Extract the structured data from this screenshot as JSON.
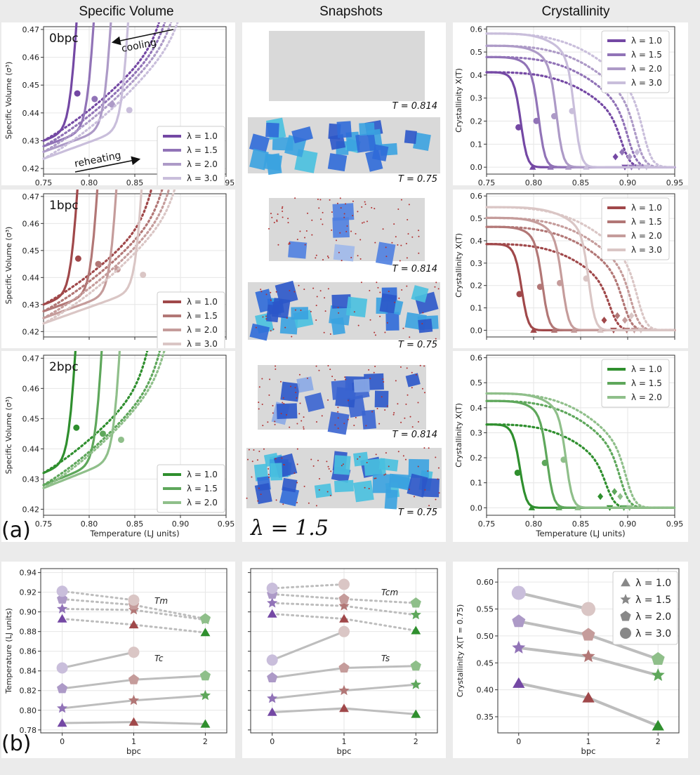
{
  "headers": {
    "specific_volume": "Specific Volume",
    "snapshots": "Snapshots",
    "crystallinity": "Crystallinity"
  },
  "panel_labels": {
    "a": "(a)",
    "b": "(b)"
  },
  "snapshot_lambda": "λ = 1.5",
  "snapshot_temps": [
    "T = 0.814",
    "T = 0.75"
  ],
  "colors": {
    "p0": [
      "#7448a4",
      "#9173b7",
      "#ad9ac7",
      "#c9bedb"
    ],
    "p1": [
      "#a0484a",
      "#b27776",
      "#c59c9b",
      "#dac6c5"
    ],
    "p2": [
      "#2f8f2e",
      "#5ea75b",
      "#8fbf8a"
    ],
    "grey": "#bdbdbd"
  },
  "chart_data": [
    {
      "type": "line",
      "id": "sv0",
      "annotation": "0bpc",
      "xlabel": "Temperature (LJ units)",
      "ylabel": "Specific Volume (σ³)",
      "xlim": [
        0.75,
        0.95
      ],
      "ylim": [
        0.418,
        0.471
      ],
      "xticks": [
        "0.75",
        "0.80",
        "0.85",
        "0.90",
        "0.95"
      ],
      "yticks": [
        "0.42",
        "0.43",
        "0.44",
        "0.45",
        "0.46",
        "0.47"
      ],
      "arrow_labels": [
        "cooling",
        "reheating"
      ],
      "series": [
        {
          "name": "λ = 1.0",
          "tc": 0.787,
          "tm": 0.895,
          "low": 0.43,
          "mid": 0.447
        },
        {
          "name": "λ = 1.5",
          "tc": 0.806,
          "tm": 0.902,
          "low": 0.428,
          "mid": 0.445
        },
        {
          "name": "λ = 2.0",
          "tc": 0.825,
          "tm": 0.91,
          "low": 0.426,
          "mid": 0.443
        },
        {
          "name": "λ = 3.0",
          "tc": 0.844,
          "tm": 0.918,
          "low": 0.4235,
          "mid": 0.441
        }
      ]
    },
    {
      "type": "line",
      "id": "sv1",
      "annotation": "1bpc",
      "xlabel": "",
      "ylabel": "Specific Volume (σ³)",
      "xlim": [
        0.75,
        0.95
      ],
      "ylim": [
        0.418,
        0.471
      ],
      "xticks": [
        "",
        "",
        "",
        "",
        ""
      ],
      "yticks": [
        "0.42",
        "0.43",
        "0.44",
        "0.45",
        "0.46",
        "0.47"
      ],
      "series": [
        {
          "name": "λ = 1.0",
          "tc": 0.788,
          "tm": 0.883,
          "low": 0.43,
          "mid": 0.447
        },
        {
          "name": "λ = 1.5",
          "tc": 0.81,
          "tm": 0.897,
          "low": 0.4275,
          "mid": 0.445
        },
        {
          "name": "λ = 2.0",
          "tc": 0.831,
          "tm": 0.905,
          "low": 0.425,
          "mid": 0.443
        },
        {
          "name": "λ = 3.0",
          "tc": 0.859,
          "tm": 0.912,
          "low": 0.423,
          "mid": 0.441
        }
      ]
    },
    {
      "type": "line",
      "id": "sv2",
      "annotation": "2bpc",
      "xlabel": "Temperature (LJ units)",
      "ylabel": "Specific Volume (σ³)",
      "xlim": [
        0.75,
        0.95
      ],
      "ylim": [
        0.418,
        0.471
      ],
      "xticks": [
        "0.75",
        "0.80",
        "0.85",
        "0.90",
        "0.95"
      ],
      "yticks": [
        "0.42",
        "0.43",
        "0.44",
        "0.45",
        "0.46",
        "0.47"
      ],
      "series": [
        {
          "name": "λ = 1.0",
          "tc": 0.786,
          "tm": 0.879,
          "low": 0.432,
          "mid": 0.447
        },
        {
          "name": "λ = 1.5",
          "tc": 0.815,
          "tm": 0.894,
          "low": 0.428,
          "mid": 0.445
        },
        {
          "name": "λ = 2.0",
          "tc": 0.835,
          "tm": 0.9,
          "low": 0.427,
          "mid": 0.443
        }
      ]
    },
    {
      "type": "line",
      "id": "cr0",
      "xlabel": "",
      "ylabel": "Crystallinity X(T)",
      "xlim": [
        0.75,
        0.95
      ],
      "ylim": [
        -0.03,
        0.61
      ],
      "xticks": [
        "0.75",
        "0.80",
        "0.85",
        "0.90",
        "0.95"
      ],
      "yticks": [
        "0.0",
        "0.1",
        "0.2",
        "0.3",
        "0.4",
        "0.5",
        "0.6"
      ],
      "series": [
        {
          "name": "λ = 1.0",
          "x0": 0.412,
          "tc": 0.787,
          "tm": 0.895
        },
        {
          "name": "λ = 1.5",
          "x0": 0.478,
          "tc": 0.806,
          "tm": 0.902
        },
        {
          "name": "λ = 2.0",
          "x0": 0.527,
          "tc": 0.825,
          "tm": 0.91
        },
        {
          "name": "λ = 3.0",
          "x0": 0.58,
          "tc": 0.844,
          "tm": 0.918
        }
      ]
    },
    {
      "type": "line",
      "id": "cr1",
      "xlabel": "",
      "ylabel": "Crystallinity X(T)",
      "xlim": [
        0.75,
        0.95
      ],
      "ylim": [
        -0.03,
        0.61
      ],
      "xticks": [
        "",
        "",
        "",
        "",
        ""
      ],
      "yticks": [
        "0.0",
        "0.1",
        "0.2",
        "0.3",
        "0.4",
        "0.5",
        "0.6"
      ],
      "series": [
        {
          "name": "λ = 1.0",
          "x0": 0.385,
          "tc": 0.788,
          "tm": 0.883
        },
        {
          "name": "λ = 1.5",
          "x0": 0.462,
          "tc": 0.81,
          "tm": 0.897
        },
        {
          "name": "λ = 2.0",
          "x0": 0.502,
          "tc": 0.831,
          "tm": 0.905
        },
        {
          "name": "λ = 3.0",
          "x0": 0.55,
          "tc": 0.859,
          "tm": 0.912
        }
      ]
    },
    {
      "type": "line",
      "id": "cr2",
      "xlabel": "Temperature (LJ units)",
      "ylabel": "Crystallinity X(T)",
      "xlim": [
        0.75,
        0.95
      ],
      "ylim": [
        -0.03,
        0.61
      ],
      "xticks": [
        "0.75",
        "0.80",
        "0.85",
        "0.90",
        "0.95"
      ],
      "yticks": [
        "0.0",
        "0.1",
        "0.2",
        "0.3",
        "0.4",
        "0.5",
        "0.6"
      ],
      "series": [
        {
          "name": "λ = 1.0",
          "x0": 0.333,
          "tc": 0.786,
          "tm": 0.879
        },
        {
          "name": "λ = 1.5",
          "x0": 0.427,
          "tc": 0.815,
          "tm": 0.894
        },
        {
          "name": "λ = 2.0",
          "x0": 0.457,
          "tc": 0.835,
          "tm": 0.9
        }
      ]
    },
    {
      "type": "scatter",
      "id": "b1",
      "xlabel": "bpc",
      "ylabel": "Temperature (LJ units)",
      "x": [
        0,
        1,
        2
      ],
      "xlim": [
        -0.3,
        2.3
      ],
      "ylim": [
        0.777,
        0.944
      ],
      "xticks": [
        "0",
        "1",
        "2"
      ],
      "yticks": [
        "0.78",
        "0.80",
        "0.82",
        "0.84",
        "0.86",
        "0.88",
        "0.90",
        "0.92",
        "0.94"
      ],
      "annotations": [
        "Tm",
        "Tc"
      ],
      "markers": [
        "triangle",
        "star",
        "pentagon",
        "circle"
      ],
      "tm": [
        [
          0.893,
          0.887,
          0.879
        ],
        [
          0.903,
          0.902,
          0.892
        ],
        [
          0.913,
          0.907,
          0.893
        ],
        [
          0.921,
          0.912,
          null
        ]
      ],
      "tc": [
        [
          0.787,
          0.788,
          0.786
        ],
        [
          0.802,
          0.81,
          0.815
        ],
        [
          0.822,
          0.831,
          0.835
        ],
        [
          0.843,
          0.859,
          null
        ]
      ]
    },
    {
      "type": "scatter",
      "id": "b2",
      "xlabel": "bpc",
      "ylabel": "",
      "x": [
        0,
        1,
        2
      ],
      "xlim": [
        -0.3,
        2.3
      ],
      "ylim": [
        0.777,
        0.944
      ],
      "xticks": [
        "0",
        "1",
        "2"
      ],
      "yticks": [
        "",
        "",
        "",
        "",
        "",
        "",
        "",
        "",
        ""
      ],
      "annotations": [
        "Tcm",
        "Ts"
      ],
      "markers": [
        "triangle",
        "star",
        "pentagon",
        "circle"
      ],
      "tm": [
        [
          0.898,
          0.893,
          0.881
        ],
        [
          0.909,
          0.906,
          0.897
        ],
        [
          0.918,
          0.913,
          0.909
        ],
        [
          0.924,
          0.928,
          null
        ]
      ],
      "tc": [
        [
          0.798,
          0.802,
          0.796
        ],
        [
          0.812,
          0.82,
          0.826
        ],
        [
          0.833,
          0.843,
          0.845
        ],
        [
          0.851,
          0.88,
          null
        ]
      ]
    },
    {
      "type": "scatter",
      "id": "b3",
      "xlabel": "bpc",
      "ylabel": "Crystallinity X(T = 0.75)",
      "x": [
        0,
        1,
        2
      ],
      "xlim": [
        -0.3,
        2.3
      ],
      "ylim": [
        0.32,
        0.625
      ],
      "xticks": [
        "0",
        "1",
        "2"
      ],
      "yticks": [
        "0.35",
        "0.40",
        "0.45",
        "0.50",
        "0.55",
        "0.60"
      ],
      "legend": [
        "λ = 1.0",
        "λ = 1.5",
        "λ = 2.0",
        "λ = 3.0"
      ],
      "markers": [
        "triangle",
        "star",
        "pentagon",
        "circle"
      ],
      "vals": [
        [
          0.412,
          0.385,
          0.333
        ],
        [
          0.478,
          0.462,
          0.427
        ],
        [
          0.527,
          0.502,
          0.457
        ],
        [
          0.58,
          0.55,
          null
        ]
      ]
    }
  ]
}
